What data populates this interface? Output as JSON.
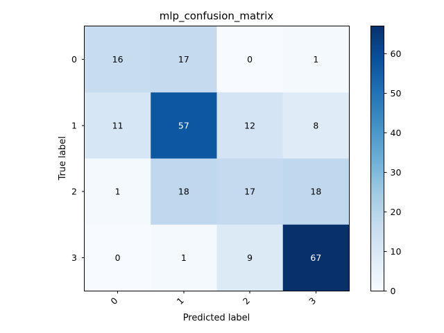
{
  "chart_data": {
    "type": "heatmap",
    "title": "mlp_confusion_matrix",
    "xlabel": "Predicted label",
    "ylabel": "True label",
    "x_categories": [
      "0",
      "1",
      "2",
      "3"
    ],
    "y_categories": [
      "0",
      "1",
      "2",
      "3"
    ],
    "matrix": [
      [
        16,
        17,
        0,
        1
      ],
      [
        11,
        57,
        12,
        8
      ],
      [
        1,
        18,
        17,
        18
      ],
      [
        0,
        1,
        9,
        67
      ]
    ],
    "colormap": "Blues",
    "colorbar": {
      "range": [
        0,
        67
      ],
      "ticks": [
        0,
        10,
        20,
        30,
        40,
        50,
        60
      ],
      "tick_labels": [
        "0",
        "10",
        "20",
        "30",
        "40",
        "50",
        "60"
      ]
    },
    "x_tick_rotation": 45,
    "grid": false
  }
}
